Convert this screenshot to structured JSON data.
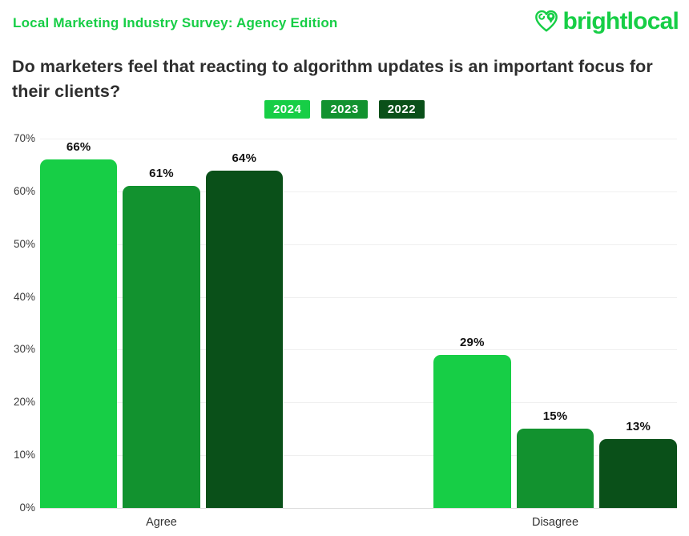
{
  "header": {
    "eyebrow": "Local Marketing Industry Survey: Agency Edition",
    "logo_text": "brightlocal"
  },
  "title": "Do marketers feel that reacting to algorithm updates is an important focus for their clients?",
  "colors": {
    "brand_green": "#17CE46",
    "title_text": "#2E2E2E",
    "axis_text": "#3C3C3C",
    "value_label_text": "#111111",
    "gridline": "#EFEFEF",
    "baseline": "#DDDDDD"
  },
  "legend": {
    "items": [
      {
        "label": "2024",
        "color": "#17CE46"
      },
      {
        "label": "2023",
        "color": "#12922F"
      },
      {
        "label": "2022",
        "color": "#0A5019"
      }
    ]
  },
  "chart_data": {
    "type": "bar",
    "title": "Do marketers feel that reacting to algorithm updates is an important focus for their clients?",
    "categories": [
      "Agree",
      "Disagree"
    ],
    "series": [
      {
        "name": "2024",
        "color": "#17CE46",
        "values": [
          66,
          29
        ]
      },
      {
        "name": "2023",
        "color": "#12922F",
        "values": [
          61,
          15
        ]
      },
      {
        "name": "2022",
        "color": "#0A5019",
        "values": [
          64,
          13
        ]
      }
    ],
    "value_labels": [
      [
        "66%",
        "61%",
        "64%"
      ],
      [
        "29%",
        "15%",
        "13%"
      ]
    ],
    "value_suffix": "%",
    "xlabel": "",
    "ylabel": "",
    "ylim": [
      0,
      70
    ],
    "ytick_step": 10,
    "yticks": [
      "0%",
      "10%",
      "20%",
      "30%",
      "40%",
      "50%",
      "60%",
      "70%"
    ],
    "grid": "horizontal-only",
    "legend_position": "top-center"
  }
}
